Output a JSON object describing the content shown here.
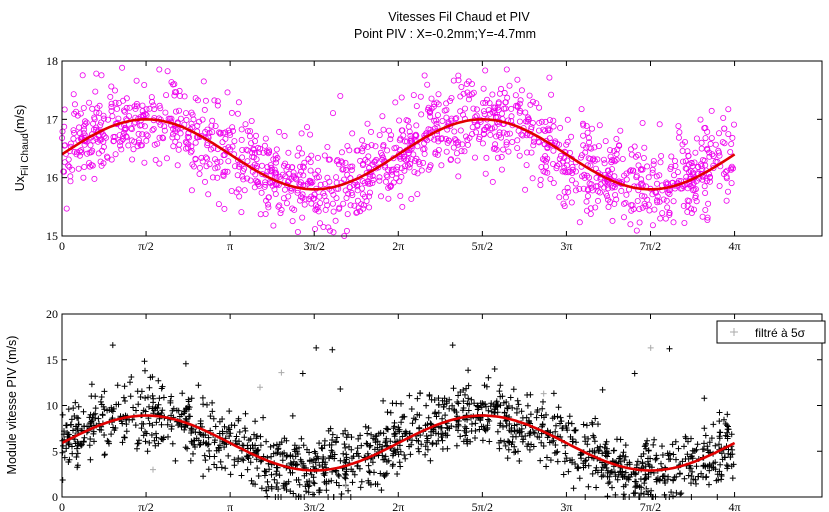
{
  "chart_data": [
    {
      "type": "scatter",
      "title": "Vitesses Fil Chaud et PIV",
      "subtitle": "Point PIV : X=-0.2mm;Y=-4.7mm",
      "ylabel": "Ux",
      "ylabel_subscript": "Fil Chaud",
      "ylabel_unit": "(m/s)",
      "xlim": [
        0,
        14.2
      ],
      "ylim": [
        15,
        18
      ],
      "x_ticks": [
        0,
        1.5708,
        3.1416,
        4.7124,
        6.2832,
        7.854,
        9.4248,
        10.9956,
        12.5664
      ],
      "x_tick_labels": [
        "0",
        "π/2",
        "π",
        "3π/2",
        "2π",
        "5π/2",
        "3π",
        "7π/2",
        "4π"
      ],
      "y_ticks": [
        15,
        16,
        17,
        18
      ],
      "y_tick_labels": [
        "15",
        "16",
        "17",
        "18"
      ],
      "grid": false,
      "legend": null,
      "colors": {
        "markers": "#ee00ee",
        "fit": "#e00000"
      },
      "series": [
        {
          "kind": "markers",
          "marker": "circle",
          "count": 1500,
          "x_range": [
            0,
            12.5664
          ],
          "mean": 16.4,
          "amplitude": 0.6,
          "phase": 0,
          "spread": 0.38,
          "outliers": [
            [
              2.65,
              17.65
            ],
            [
              5.2,
              17.4
            ],
            [
              7.6,
              17.65
            ],
            [
              8.8,
              17.3
            ],
            [
              12.0,
              16.85
            ],
            [
              0.4,
              16.0
            ],
            [
              10.5,
              15.55
            ]
          ]
        },
        {
          "kind": "fit",
          "x_range": [
            0,
            12.5664
          ],
          "mean": 16.4,
          "amplitude": 0.6,
          "phase": 0
        }
      ]
    },
    {
      "type": "scatter",
      "ylabel": "Module vitesse PIV  (m/s)",
      "xlim": [
        0,
        14.2
      ],
      "ylim": [
        0,
        20
      ],
      "x_ticks": [
        0,
        1.5708,
        3.1416,
        4.7124,
        6.2832,
        7.854,
        9.4248,
        10.9956,
        12.5664
      ],
      "x_tick_labels": [
        "0",
        "π/2",
        "π",
        "3π/2",
        "2π",
        "5π/2",
        "3π",
        "7π/2",
        "4π"
      ],
      "y_ticks": [
        0,
        5,
        10,
        15,
        20
      ],
      "y_tick_labels": [
        "0",
        "5",
        "10",
        "15",
        "20"
      ],
      "grid": false,
      "legend": {
        "position": "top-right",
        "entries": [
          {
            "label": "filtré à 5σ",
            "marker": "plus",
            "color": "#aaaaaa"
          }
        ]
      },
      "colors": {
        "markers": "#000000",
        "filtered": "#aaaaaa",
        "fit": "#e00000"
      },
      "series": [
        {
          "kind": "markers",
          "marker": "plus",
          "count": 1500,
          "x_range": [
            0,
            12.5664
          ],
          "mean": 5.9,
          "amplitude": 3.0,
          "phase": 0,
          "spread": 1.8,
          "outliers": [
            [
              0.95,
              16.6
            ],
            [
              4.75,
              16.3
            ],
            [
              5.05,
              16.1
            ],
            [
              7.3,
              16.6
            ],
            [
              11.35,
              16.2
            ],
            [
              10.7,
              13.5
            ],
            [
              4.5,
              13.5
            ],
            [
              1.8,
              12.7
            ],
            [
              10.1,
              11.7
            ],
            [
              5.2,
              11.8
            ],
            [
              12.0,
              10.8
            ],
            [
              6.0,
              10.5
            ]
          ]
        },
        {
          "kind": "filtered",
          "marker": "plus",
          "points": [
            [
              3.7,
              12.0
            ],
            [
              4.1,
              13.6
            ],
            [
              9.0,
              11.3
            ],
            [
              11.0,
              16.3
            ],
            [
              1.7,
              3.0
            ],
            [
              5.3,
              1.2
            ],
            [
              10.9,
              0.8
            ]
          ]
        },
        {
          "kind": "fit",
          "x_range": [
            0,
            12.5664
          ],
          "mean": 5.9,
          "amplitude": 3.0,
          "phase": 0
        }
      ]
    }
  ]
}
